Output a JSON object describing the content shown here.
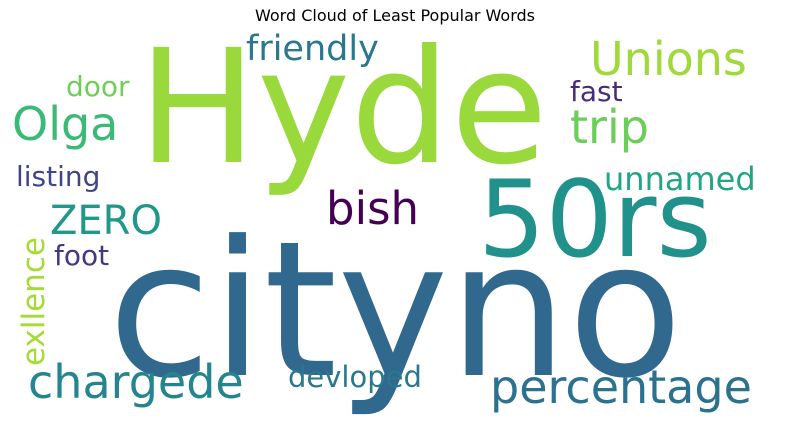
{
  "title": "Word Cloud of Least Popular Words",
  "words": [
    {
      "text": "Hyde",
      "color": "#9ad93c"
    },
    {
      "text": "cityno",
      "color": "#31688e"
    },
    {
      "text": "50rs",
      "color": "#21918c"
    },
    {
      "text": "percentage",
      "color": "#2c728e"
    },
    {
      "text": "chargede",
      "color": "#25858e"
    },
    {
      "text": "Unions",
      "color": "#9fda3a"
    },
    {
      "text": "trip",
      "color": "#6ccd5a"
    },
    {
      "text": "Olga",
      "color": "#3aba76"
    },
    {
      "text": "friendly",
      "color": "#2a788e"
    },
    {
      "text": "bish",
      "color": "#440154"
    },
    {
      "text": "ZERO",
      "color": "#1f988b"
    },
    {
      "text": "unnamed",
      "color": "#21a585"
    },
    {
      "text": "exllence",
      "color": "#a5db36"
    },
    {
      "text": "devloped",
      "color": "#2a778e"
    },
    {
      "text": "listing",
      "color": "#3f4788"
    },
    {
      "text": "door",
      "color": "#6ece58"
    },
    {
      "text": "fast",
      "color": "#472c7a"
    },
    {
      "text": "foot",
      "color": "#453781"
    }
  ]
}
